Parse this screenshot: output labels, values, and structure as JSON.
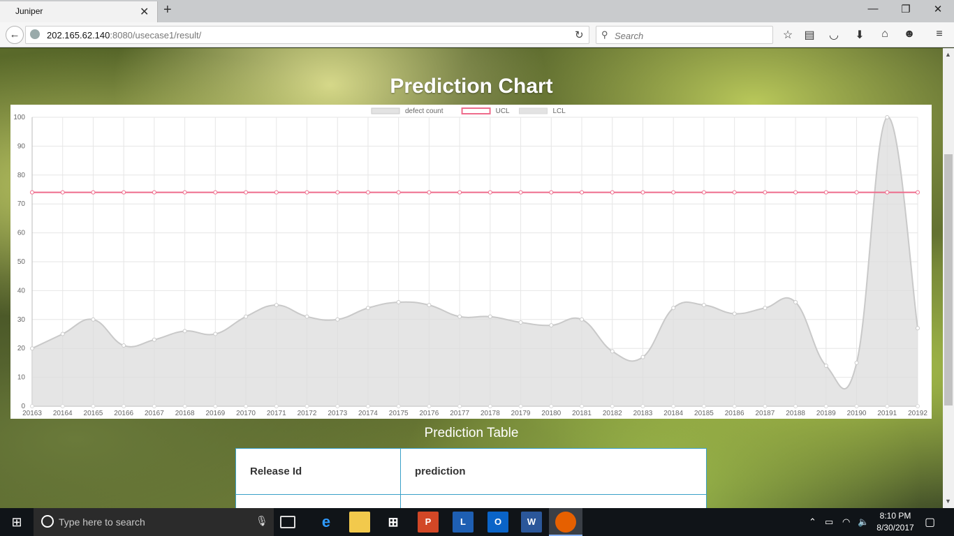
{
  "browser": {
    "tab_title": "Juniper",
    "url_host": "202.165.62.140",
    "url_rest": ":8080/usecase1/result/",
    "search_placeholder": "Search"
  },
  "page": {
    "chart_heading": "Prediction Chart",
    "table_heading": "Prediction Table",
    "table_columns": [
      "Release Id",
      "prediction"
    ]
  },
  "chart_data": {
    "type": "line",
    "categories": [
      "20163",
      "20164",
      "20165",
      "20166",
      "20167",
      "20168",
      "20169",
      "20170",
      "20171",
      "20172",
      "20173",
      "20174",
      "20175",
      "20176",
      "20177",
      "20178",
      "20179",
      "20180",
      "20181",
      "20182",
      "20183",
      "20184",
      "20185",
      "20186",
      "20187",
      "20188",
      "20189",
      "20190",
      "20191",
      "20192"
    ],
    "series": [
      {
        "name": "defect count",
        "values": [
          20,
          25,
          30,
          21,
          23,
          26,
          25,
          31,
          35,
          31,
          30,
          34,
          36,
          35,
          31,
          31,
          29,
          28,
          30,
          19,
          17,
          34,
          35,
          32,
          34,
          36,
          14,
          15,
          100,
          27
        ],
        "fill": true,
        "color": "#c9c9c9"
      },
      {
        "name": "UCL",
        "values": [
          74,
          74,
          74,
          74,
          74,
          74,
          74,
          74,
          74,
          74,
          74,
          74,
          74,
          74,
          74,
          74,
          74,
          74,
          74,
          74,
          74,
          74,
          74,
          74,
          74,
          74,
          74,
          74,
          74,
          74
        ],
        "fill": false,
        "color": "#ee6b8b"
      },
      {
        "name": "LCL",
        "values": [
          0,
          0,
          0,
          0,
          0,
          0,
          0,
          0,
          0,
          0,
          0,
          0,
          0,
          0,
          0,
          0,
          0,
          0,
          0,
          0,
          0,
          0,
          0,
          0,
          0,
          0,
          0,
          0,
          0,
          0
        ],
        "fill": true,
        "color": "#d8d8d8"
      }
    ],
    "yticks": [
      0,
      10,
      20,
      30,
      40,
      50,
      60,
      70,
      80,
      90,
      100
    ],
    "ylim": [
      0,
      100
    ],
    "grid": true,
    "legend": "top-center"
  },
  "taskbar": {
    "search_placeholder": "Type here to search",
    "time": "8:10 PM",
    "date": "8/30/2017"
  },
  "colors": {
    "ucl": "#ee6b8b",
    "table_border": "#3aa0c8"
  }
}
